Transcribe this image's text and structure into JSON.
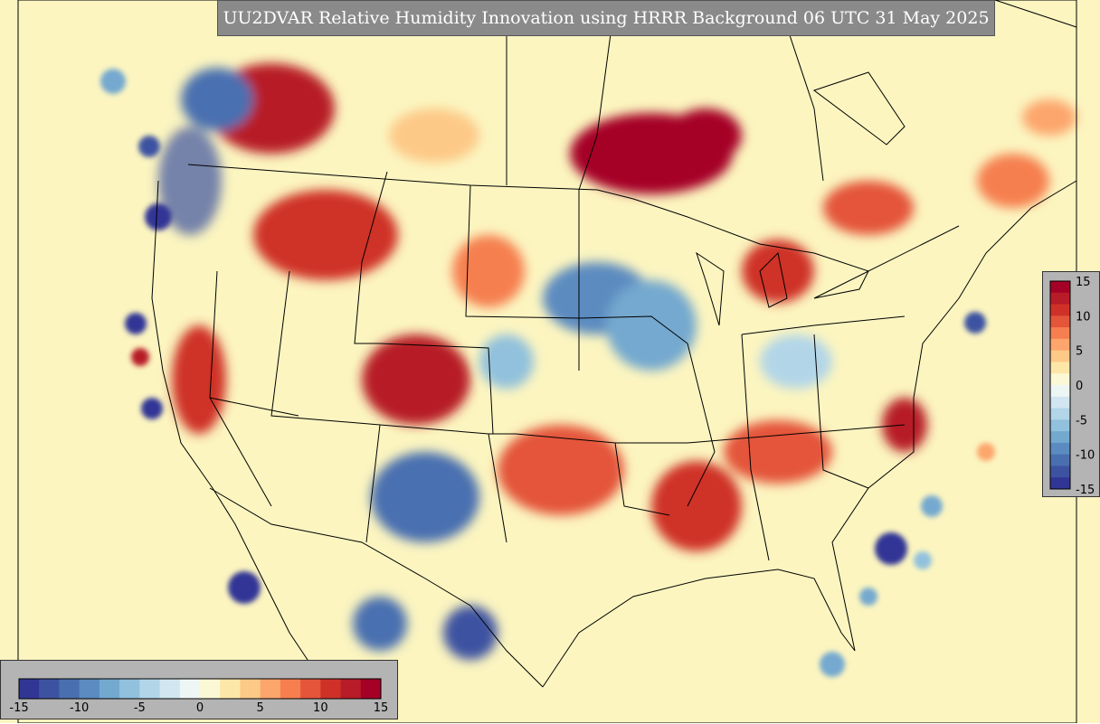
{
  "title": "UU2DVAR Relative Humidity Innovation using HRRR Background 06 UTC 31 May 2025",
  "colorbar": {
    "min": -15,
    "max": 15,
    "horizontal_ticks": [
      "-15",
      "-10",
      "-5",
      "0",
      "5",
      "10",
      "15"
    ],
    "vertical_ticks": [
      "15",
      "10",
      "5",
      "0",
      "-5",
      "-10",
      "-15"
    ],
    "colors": [
      "#313695",
      "#3d53a1",
      "#4a6fb0",
      "#5b8bc0",
      "#74a9cf",
      "#91c1dd",
      "#b2d6e8",
      "#d1e6f0",
      "#eef6f5",
      "#fbf8d6",
      "#fde7a8",
      "#fdc987",
      "#fca56c",
      "#f67f50",
      "#e4553a",
      "#cf3128",
      "#b71c28",
      "#a50026"
    ]
  },
  "map": {
    "background_color": "#fcf5c0",
    "boundary_color": "#000000",
    "region": "Contiguous United States with southern Canada and northern Mexico"
  }
}
